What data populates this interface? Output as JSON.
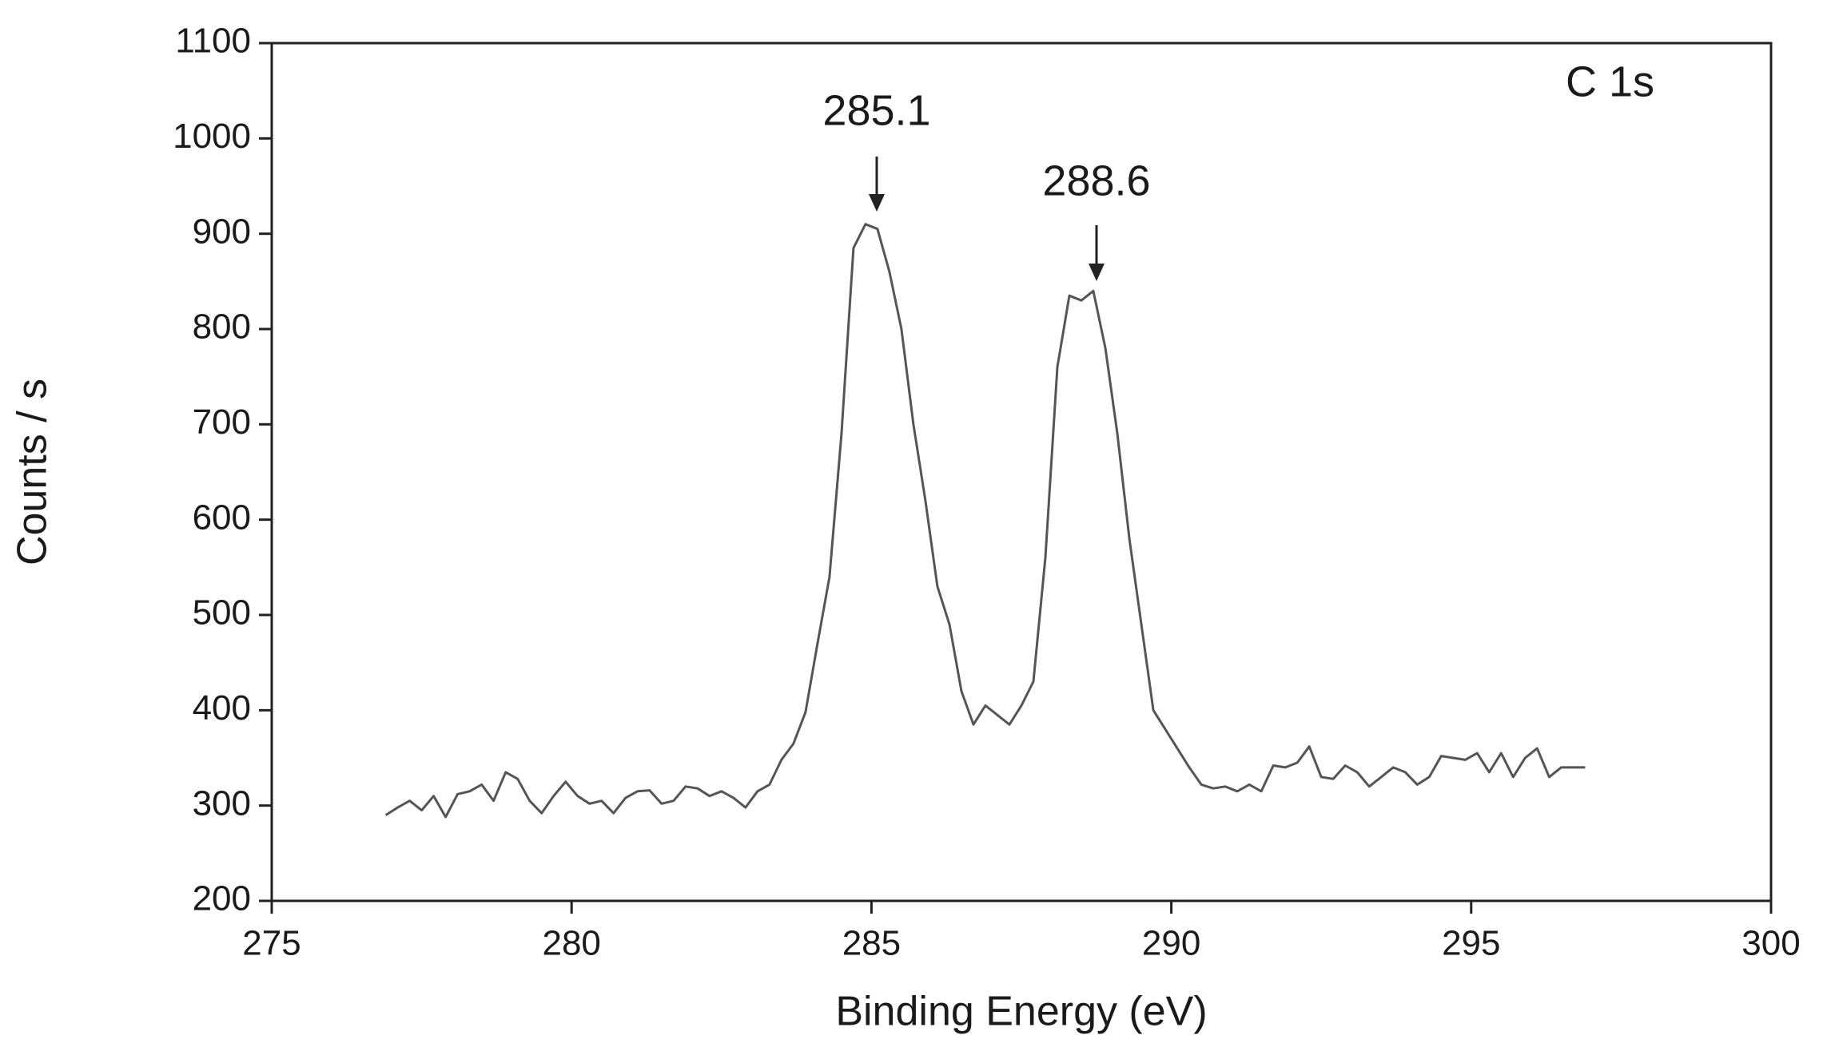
{
  "chart_data": {
    "type": "line",
    "x_label": "Binding Energy (eV)",
    "y_label": "Counts / s",
    "panel_label": "C 1s",
    "annotations": [
      "285.1",
      "288.6"
    ],
    "xlim": [
      275,
      300
    ],
    "xticks": [
      275,
      280,
      285,
      290,
      295,
      300
    ],
    "ylim": [
      200,
      1100
    ],
    "yticks": [
      200,
      300,
      400,
      500,
      600,
      700,
      800,
      900,
      1000,
      1100
    ],
    "grid": false,
    "x": [
      276.9,
      277.1,
      277.3,
      277.5,
      277.7,
      277.9,
      278.1,
      278.3,
      278.5,
      278.7,
      278.9,
      279.1,
      279.3,
      279.5,
      279.7,
      279.9,
      280.1,
      280.3,
      280.5,
      280.7,
      280.9,
      281.1,
      281.3,
      281.5,
      281.7,
      281.9,
      282.1,
      282.3,
      282.5,
      282.7,
      282.9,
      283.1,
      283.3,
      283.5,
      283.7,
      283.9,
      284.1,
      284.3,
      284.5,
      284.7,
      284.9,
      285.1,
      285.3,
      285.5,
      285.7,
      285.9,
      286.1,
      286.3,
      286.5,
      286.7,
      286.9,
      287.1,
      287.3,
      287.5,
      287.7,
      287.9,
      288.1,
      288.3,
      288.5,
      288.7,
      288.9,
      289.1,
      289.3,
      289.5,
      289.7,
      289.9,
      290.1,
      290.3,
      290.5,
      290.7,
      290.9,
      291.1,
      291.3,
      291.5,
      291.7,
      291.9,
      292.1,
      292.3,
      292.5,
      292.7,
      292.9,
      293.1,
      293.3,
      293.5,
      293.7,
      293.9,
      294.1,
      294.3,
      294.5,
      294.7,
      294.9,
      295.1,
      295.3,
      295.5,
      295.7,
      295.9,
      296.1,
      296.3,
      296.5,
      296.7,
      296.9
    ],
    "series": [
      {
        "color": "#555555",
        "values": [
          290,
          298,
          305,
          295,
          310,
          288,
          312,
          315,
          322,
          305,
          335,
          328,
          305,
          292,
          310,
          325,
          310,
          302,
          305,
          292,
          308,
          315,
          316,
          302,
          305,
          320,
          318,
          310,
          315,
          308,
          298,
          315,
          322,
          348,
          365,
          398,
          470,
          540,
          690,
          885,
          910,
          905,
          860,
          800,
          700,
          620,
          530,
          490,
          420,
          385,
          405,
          395,
          385,
          405,
          430,
          560,
          760,
          835,
          830,
          840,
          780,
          690,
          580,
          490,
          400,
          380,
          360,
          340,
          322,
          318,
          320,
          315,
          322,
          315,
          342,
          340,
          345,
          362,
          330,
          328,
          342,
          335,
          320,
          330,
          340,
          335,
          322,
          330,
          352,
          350,
          348,
          355,
          335,
          355,
          330,
          350,
          360,
          330,
          340,
          340,
          340
        ]
      }
    ]
  }
}
